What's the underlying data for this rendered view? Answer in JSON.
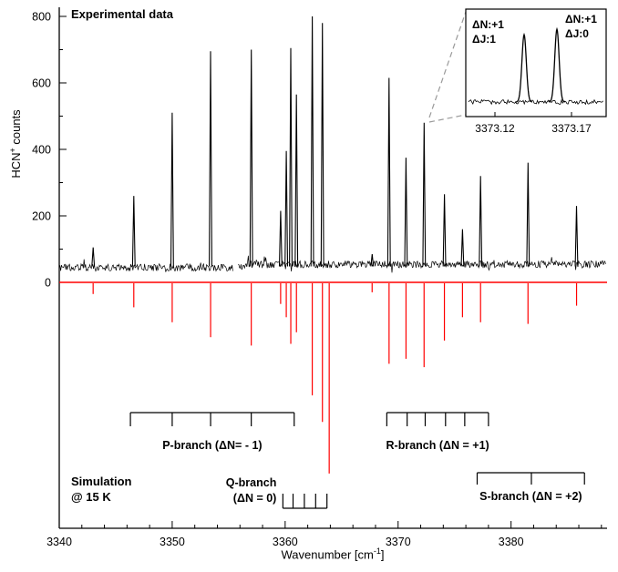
{
  "labels": {
    "experimental": "Experimental data",
    "simulation": [
      "Simulation",
      "@ 15 K"
    ],
    "ylabel": {
      "base": "HCN",
      "sup": "+",
      "rest": " counts"
    },
    "xlabel": {
      "base": "Wavenumber [cm",
      "sup": "-1",
      "rest": "]"
    }
  },
  "chart_data": {
    "type": "line",
    "xlabel": "Wavenumber [cm-1]",
    "ylabel": "HCN+ counts",
    "x_range": [
      3340,
      3388.5
    ],
    "x_ticks": [
      3340,
      3350,
      3360,
      3370,
      3380
    ],
    "y_ticks": [
      0,
      200,
      400,
      600,
      800
    ],
    "y_range_counts": [
      0,
      800
    ],
    "colors": {
      "experimental": "#000000",
      "simulation": "#ff0000",
      "connector": "#9a9a9a"
    },
    "experimental_baseline_counts": 45,
    "experimental_peaks": [
      [
        3343.0,
        105
      ],
      [
        3346.6,
        260
      ],
      [
        3350.0,
        510
      ],
      [
        3353.4,
        695
      ],
      [
        3357.0,
        700
      ],
      [
        3359.6,
        215
      ],
      [
        3360.1,
        395
      ],
      [
        3360.5,
        705
      ],
      [
        3361.0,
        565
      ],
      [
        3362.4,
        800
      ],
      [
        3363.3,
        780
      ],
      [
        3367.7,
        85
      ],
      [
        3369.2,
        615
      ],
      [
        3370.7,
        375
      ],
      [
        3372.3,
        480
      ],
      [
        3374.1,
        265
      ],
      [
        3375.7,
        160
      ],
      [
        3377.3,
        320
      ],
      [
        3381.5,
        360
      ],
      [
        3385.8,
        230
      ]
    ],
    "simulation_peaks": [
      [
        3343.0,
        35
      ],
      [
        3346.6,
        75
      ],
      [
        3350.0,
        120
      ],
      [
        3353.4,
        165
      ],
      [
        3357.0,
        190
      ],
      [
        3359.6,
        65
      ],
      [
        3360.1,
        105
      ],
      [
        3360.5,
        185
      ],
      [
        3361.0,
        150
      ],
      [
        3362.4,
        340
      ],
      [
        3363.3,
        420
      ],
      [
        3363.9,
        575
      ],
      [
        3367.7,
        30
      ],
      [
        3369.2,
        245
      ],
      [
        3370.7,
        230
      ],
      [
        3372.3,
        255
      ],
      [
        3374.1,
        175
      ],
      [
        3375.7,
        105
      ],
      [
        3377.3,
        120
      ],
      [
        3381.5,
        125
      ],
      [
        3385.8,
        70
      ]
    ],
    "branches": [
      {
        "id": "p",
        "style": "bracket-down",
        "label": "P-branch (ΔN= - 1)",
        "span": [
          3346.3,
          3360.8
        ],
        "ticks": [
          3350.0,
          3353.4,
          3357.0
        ]
      },
      {
        "id": "r",
        "style": "bracket-down",
        "label": "R-branch (ΔN = +1)",
        "span": [
          3369.0,
          3378.0
        ],
        "ticks": [
          3370.8,
          3372.4,
          3374.2,
          3375.9
        ]
      },
      {
        "id": "q",
        "style": "comb-up",
        "label_lines": [
          "Q-branch",
          "(ΔN = 0)"
        ],
        "span": [
          3359.8,
          3363.7
        ],
        "ticks": [
          3360.7,
          3361.7,
          3362.7
        ]
      },
      {
        "id": "s",
        "style": "bracket-down",
        "label": "S-branch (ΔN = +2)",
        "span": [
          3377.0,
          3386.5
        ],
        "ticks": [
          3381.8
        ]
      }
    ],
    "inset": {
      "x_tick_labels": [
        "3373.12",
        "3373.17"
      ],
      "peaks": [
        {
          "x": "3373.14",
          "label_lines": [
            "ΔN:+1",
            "ΔJ:1"
          ]
        },
        {
          "x": "3373.16",
          "label_lines": [
            "ΔN:+1",
            "ΔJ:0"
          ]
        }
      ]
    }
  }
}
